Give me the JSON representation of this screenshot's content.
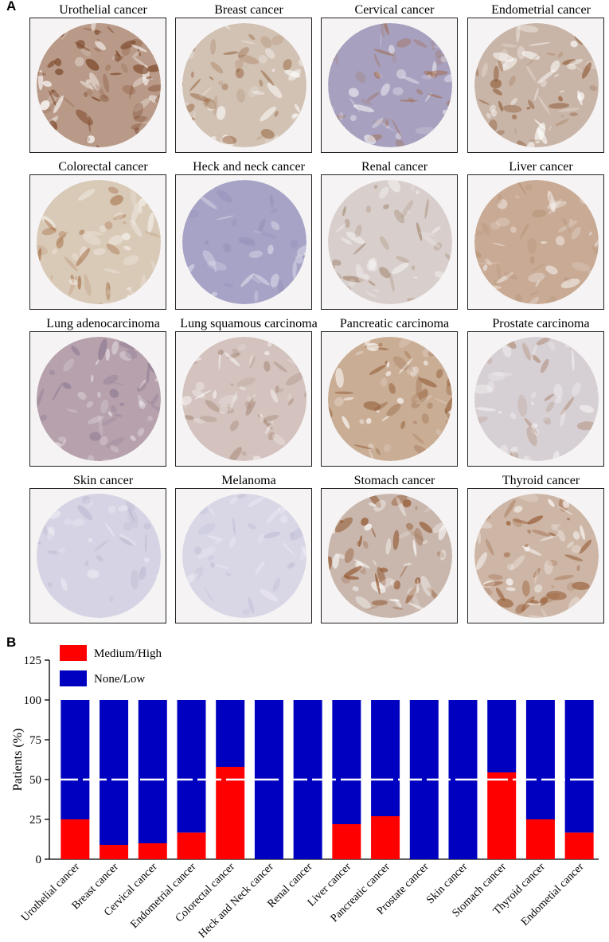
{
  "panel_a": {
    "label": "A",
    "cores": [
      {
        "title": "Urothelial cancer",
        "stain": "#7e4a2c",
        "base": "#b99a88",
        "intensity": 0.85
      },
      {
        "title": "Breast cancer",
        "stain": "#9a6a45",
        "base": "#d2c2b4",
        "intensity": 0.55
      },
      {
        "title": "Cervical cancer",
        "stain": "#a06238",
        "base": "#a7a0be",
        "intensity": 0.4
      },
      {
        "title": "Endometrial cancer",
        "stain": "#8e5a36",
        "base": "#c9b5a7",
        "intensity": 0.6
      },
      {
        "title": "Colorectal cancer",
        "stain": "#a0683d",
        "base": "#d9c9b7",
        "intensity": 0.5
      },
      {
        "title": "Heck and neck cancer",
        "stain": "#8a86b2",
        "base": "#a6a3c6",
        "intensity": 0.1
      },
      {
        "title": "Renal cancer",
        "stain": "#8e6848",
        "base": "#d8cfcc",
        "intensity": 0.25
      },
      {
        "title": "Liver cancer",
        "stain": "#b38f70",
        "base": "#c8aa95",
        "intensity": 0.35
      },
      {
        "title": "Lung adenocarcinoma",
        "stain": "#7d6a88",
        "base": "#b6a1ad",
        "intensity": 0.3
      },
      {
        "title": "Lung squamous carcinoma",
        "stain": "#9c7b67",
        "base": "#d3c2bd",
        "intensity": 0.35
      },
      {
        "title": "Pancreatic carcinoma",
        "stain": "#946039",
        "base": "#c9ad95",
        "intensity": 0.6
      },
      {
        "title": "Prostate carcinoma",
        "stain": "#9b6a48",
        "base": "#d6cfd3",
        "intensity": 0.3
      },
      {
        "title": "Skin cancer",
        "stain": "#aaa6c4",
        "base": "#d6d3e4",
        "intensity": 0.05
      },
      {
        "title": "Melanoma",
        "stain": "#b1aecb",
        "base": "#d9d6e6",
        "intensity": 0.05
      },
      {
        "title": "Stomach cancer",
        "stain": "#8e4f24",
        "base": "#c9b7ad",
        "intensity": 0.7
      },
      {
        "title": "Thyroid cancer",
        "stain": "#94562d",
        "base": "#cdb6a6",
        "intensity": 0.65
      }
    ]
  },
  "panel_b": {
    "label": "B",
    "colors": {
      "medium_high": "#ff0000",
      "none_low": "#0000c0",
      "reference_line": "#ffffff"
    },
    "chart_data": {
      "type": "bar",
      "stacked": true,
      "ylabel": "Patients (%)",
      "ylim": [
        0,
        125
      ],
      "yticks": [
        "0",
        "25",
        "50",
        "75",
        "100",
        "125"
      ],
      "reference_line_y": 50,
      "legend_position": "top-left",
      "categories": [
        "Urothelial cancer",
        "Breast cancer",
        "Cervical cancer",
        "Endometrial cancer",
        "Colorectal cancer",
        "Heck and Neck cancer",
        "Renal cancer",
        "Liver cancer",
        "Pancreatic cancer",
        "Prostate cancer",
        "Skin cancer",
        "Stomach cancer",
        "Thyroid cancer",
        "Endometial cancer"
      ],
      "series": [
        {
          "name": "Medium/High",
          "values": [
            25,
            9,
            10,
            16.7,
            58,
            0,
            0,
            22,
            27,
            0,
            0,
            54.5,
            25,
            16.7
          ]
        },
        {
          "name": "None/Low",
          "values": [
            75,
            91,
            90,
            83.3,
            42,
            100,
            100,
            78,
            73,
            100,
            100,
            45.5,
            75,
            83.3
          ]
        }
      ]
    }
  }
}
